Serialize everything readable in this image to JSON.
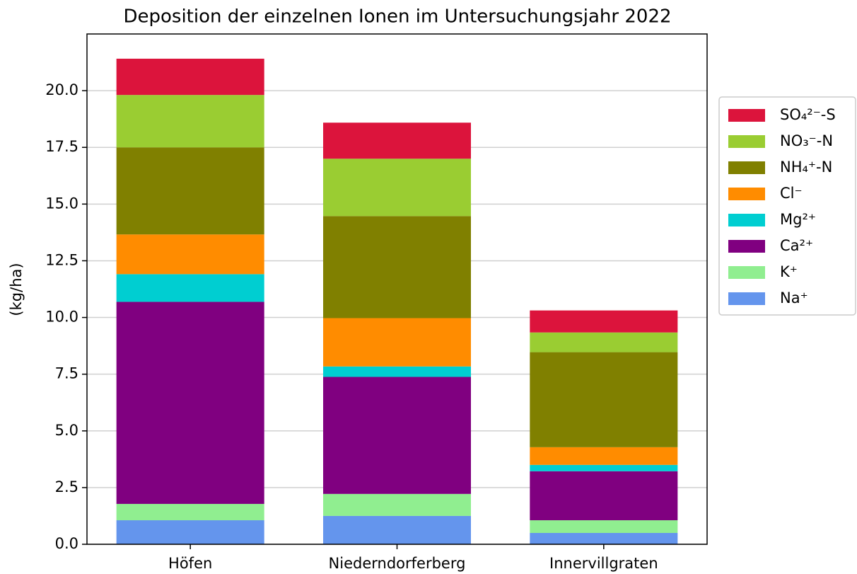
{
  "chart_data": {
    "type": "stacked_bar",
    "title": "Deposition der einzelnen Ionen im Untersuchungsjahr 2022",
    "y_label": "(kg/ha)",
    "categories": [
      "Höfen",
      "Niederndorferberg",
      "Innervillgraten"
    ],
    "series": [
      {
        "name": "Na⁺",
        "color": "#6495ed",
        "values": [
          1.06,
          1.25,
          0.5
        ]
      },
      {
        "name": "K⁺",
        "color": "#90ee90",
        "values": [
          0.72,
          0.97,
          0.56
        ]
      },
      {
        "name": "Ca²⁺",
        "color": "#800080",
        "values": [
          8.91,
          5.16,
          2.16
        ]
      },
      {
        "name": "Mg²⁺",
        "color": "#00ced1",
        "values": [
          1.22,
          0.46,
          0.28
        ]
      },
      {
        "name": "Cl⁻",
        "color": "#ff8c00",
        "values": [
          1.75,
          2.13,
          0.78
        ]
      },
      {
        "name": "NH₄⁺-N",
        "color": "#808000",
        "values": [
          3.84,
          4.5,
          4.19
        ]
      },
      {
        "name": "NO₃⁻-N",
        "color": "#9acd32",
        "values": [
          2.31,
          2.53,
          0.87
        ]
      },
      {
        "name": "SO₄²⁻-S",
        "color": "#dc143c",
        "values": [
          1.6,
          1.59,
          0.97
        ]
      }
    ],
    "ylim": [
      0,
      22.5
    ],
    "yticks": [
      {
        "value": 0,
        "label": "0.0"
      },
      2.5,
      {
        "value": 5,
        "label": "5.0"
      },
      7.5,
      {
        "value": 10,
        "label": "10.0"
      },
      12.5,
      {
        "value": 15,
        "label": "15.0"
      },
      17.5,
      {
        "value": 20,
        "label": "20.0"
      }
    ],
    "grid": true,
    "legend": "outside-right"
  }
}
